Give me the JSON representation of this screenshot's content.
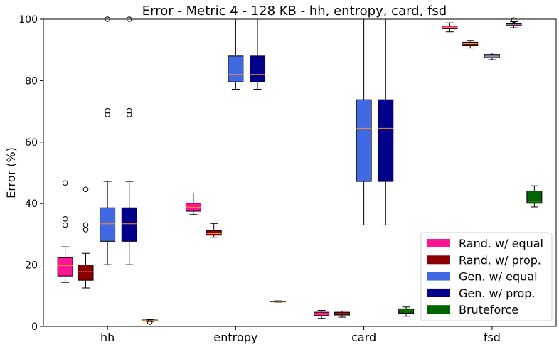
{
  "chart_data": {
    "type": "boxplot",
    "title": "Error - Metric 4 - 128 KB - hh, entropy, card, fsd",
    "xlabel": "",
    "ylabel": "Error (%)",
    "ylim": [
      0,
      100
    ],
    "yticks": [
      "0",
      "20",
      "40",
      "60",
      "80",
      "100"
    ],
    "categories": [
      "hh",
      "entropy",
      "card",
      "fsd"
    ],
    "grid": false,
    "legend_position": "bottom-right",
    "series": [
      {
        "name": "Rand. w/ equal",
        "color": "#ff1493",
        "boxes": [
          {
            "whislo": 14.3,
            "q1": 16.4,
            "med": 19.8,
            "q3": 22.4,
            "whishi": 25.9,
            "fliers": [
              33.0,
              35.0,
              46.7
            ]
          },
          {
            "whislo": 36.4,
            "q1": 37.5,
            "med": 38.8,
            "q3": 40.1,
            "whishi": 43.4,
            "fliers": []
          },
          {
            "whislo": 2.6,
            "q1": 3.5,
            "med": 4.0,
            "q3": 4.6,
            "whishi": 5.2,
            "fliers": []
          },
          {
            "whislo": 95.9,
            "q1": 96.9,
            "med": 97.3,
            "q3": 97.8,
            "whishi": 98.8,
            "fliers": []
          }
        ]
      },
      {
        "name": "Rand. w/ prop.",
        "color": "#8b0000",
        "boxes": [
          {
            "whislo": 12.5,
            "q1": 15.0,
            "med": 17.8,
            "q3": 20.0,
            "whishi": 23.8,
            "fliers": [
              31.5,
              33.0,
              44.6
            ]
          },
          {
            "whislo": 29.0,
            "q1": 29.7,
            "med": 30.2,
            "q3": 31.2,
            "whishi": 33.5,
            "fliers": []
          },
          {
            "whislo": 3.0,
            "q1": 3.7,
            "med": 4.1,
            "q3": 4.6,
            "whishi": 5.0,
            "fliers": []
          },
          {
            "whislo": 90.6,
            "q1": 91.5,
            "med": 92.0,
            "q3": 92.5,
            "whishi": 93.1,
            "fliers": []
          }
        ]
      },
      {
        "name": "Gen. w/ equal",
        "color": "#4169e1",
        "boxes": [
          {
            "whislo": 20.1,
            "q1": 27.7,
            "med": 33.4,
            "q3": 38.6,
            "whishi": 47.2,
            "fliers": [
              69.0,
              70.2,
              100.0
            ]
          },
          {
            "whislo": 77.2,
            "q1": 79.6,
            "med": 82.0,
            "q3": 88.0,
            "whishi": 100.0,
            "fliers": []
          },
          {
            "whislo": 33.0,
            "q1": 47.2,
            "med": 64.5,
            "q3": 73.8,
            "whishi": 100.0,
            "fliers": []
          },
          {
            "whislo": 86.8,
            "q1": 87.4,
            "med": 87.9,
            "q3": 88.5,
            "whishi": 89.0,
            "fliers": []
          }
        ]
      },
      {
        "name": "Gen. w/ prop.",
        "color": "#00008b",
        "boxes": [
          {
            "whislo": 20.1,
            "q1": 27.7,
            "med": 33.4,
            "q3": 38.6,
            "whishi": 47.2,
            "fliers": [
              69.0,
              70.2,
              100.0
            ]
          },
          {
            "whislo": 77.2,
            "q1": 79.6,
            "med": 82.0,
            "q3": 88.0,
            "whishi": 100.0,
            "fliers": []
          },
          {
            "whislo": 33.0,
            "q1": 47.2,
            "med": 64.5,
            "q3": 73.8,
            "whishi": 100.0,
            "fliers": []
          },
          {
            "whislo": 97.2,
            "q1": 97.8,
            "med": 98.2,
            "q3": 98.6,
            "whishi": 99.2,
            "fliers": [
              99.7
            ]
          }
        ]
      },
      {
        "name": "Bruteforce",
        "color": "#006400",
        "boxes": [
          {
            "whislo": 1.6,
            "q1": 1.8,
            "med": 2.0,
            "q3": 2.1,
            "whishi": 2.3,
            "fliers": [
              1.4
            ]
          },
          {
            "whislo": 7.9,
            "q1": 8.0,
            "med": 8.1,
            "q3": 8.2,
            "whishi": 8.3,
            "fliers": []
          },
          {
            "whislo": 3.3,
            "q1": 4.3,
            "med": 5.0,
            "q3": 5.7,
            "whishi": 6.3,
            "fliers": []
          },
          {
            "whislo": 38.9,
            "q1": 40.1,
            "med": 40.8,
            "q3": 44.1,
            "whishi": 45.8,
            "fliers": []
          }
        ]
      }
    ],
    "median_color": "#ff8c2a"
  }
}
